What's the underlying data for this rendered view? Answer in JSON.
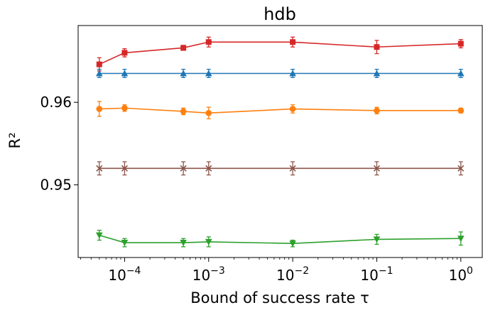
{
  "chart_data": {
    "type": "line",
    "title": "hdb",
    "xlabel": "Bound of success rate τ",
    "ylabel": "R²",
    "xscale": "log",
    "xlim": [
      2.8e-05,
      1.8
    ],
    "ylim": [
      0.9412,
      0.9693
    ],
    "grid": false,
    "x": [
      5e-05,
      0.0001,
      0.0005,
      0.001,
      0.01,
      0.1,
      1
    ],
    "x_ticks": [
      {
        "value": 0.0001,
        "base": "10",
        "exp": "−4"
      },
      {
        "value": 0.001,
        "base": "10",
        "exp": "−3"
      },
      {
        "value": 0.01,
        "base": "10",
        "exp": "−2"
      },
      {
        "value": 0.1,
        "base": "10",
        "exp": "−1"
      },
      {
        "value": 1,
        "base": "10",
        "exp": "0"
      }
    ],
    "y_ticks": [
      {
        "value": 0.95,
        "label": "0.95"
      },
      {
        "value": 0.96,
        "label": "0.96"
      }
    ],
    "series": [
      {
        "color": "#d62728",
        "marker": "square",
        "values": [
          0.9646,
          0.966,
          0.9666,
          0.9673,
          0.9673,
          0.9667,
          0.9671
        ],
        "errors": [
          0.0008,
          0.0005,
          0.0003,
          0.0006,
          0.0006,
          0.0008,
          0.0005
        ]
      },
      {
        "color": "#1f77b4",
        "marker": "triangle-up",
        "values": [
          0.9635,
          0.9635,
          0.9635,
          0.9635,
          0.9635,
          0.9635,
          0.9635
        ],
        "errors": [
          0.0005,
          0.0005,
          0.0005,
          0.0005,
          0.0005,
          0.0005,
          0.0005
        ]
      },
      {
        "color": "#ff7f0e",
        "marker": "circle",
        "values": [
          0.9592,
          0.9593,
          0.9589,
          0.9587,
          0.9592,
          0.959,
          0.959
        ],
        "errors": [
          0.0009,
          0.0004,
          0.0004,
          0.0007,
          0.0005,
          0.0004,
          0.0003
        ]
      },
      {
        "color": "#8c564b",
        "marker": "x",
        "values": [
          0.952,
          0.952,
          0.952,
          0.952,
          0.952,
          0.952,
          0.952
        ],
        "errors": [
          0.0008,
          0.0008,
          0.0008,
          0.0008,
          0.0008,
          0.0008,
          0.0008
        ]
      },
      {
        "color": "#2ca02c",
        "marker": "triangle-down",
        "values": [
          0.9439,
          0.943,
          0.943,
          0.9431,
          0.9429,
          0.9434,
          0.9435
        ],
        "errors": [
          0.0006,
          0.0005,
          0.0005,
          0.0006,
          0.0004,
          0.0006,
          0.0008
        ]
      }
    ]
  }
}
